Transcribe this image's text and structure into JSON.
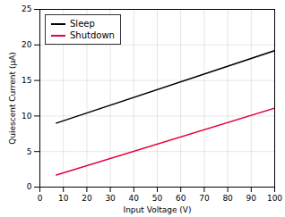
{
  "chart_data": {
    "type": "line",
    "xlabel": "Input Voltage (V)",
    "ylabel": "Quiescent Current (μA)",
    "x": [
      7,
      100
    ],
    "series": [
      {
        "name": "Sleep",
        "color": "#000000",
        "values": [
          9.0,
          19.2
        ]
      },
      {
        "name": "Shutdown",
        "color": "#e8003d",
        "values": [
          1.7,
          11.1
        ]
      }
    ],
    "xlim": [
      0,
      100
    ],
    "ylim": [
      0,
      25
    ],
    "xticks": [
      0,
      10,
      20,
      30,
      40,
      50,
      60,
      70,
      80,
      90,
      100
    ],
    "yticks": [
      0,
      5,
      10,
      15,
      20,
      25
    ],
    "grid": true,
    "legend": "upper left"
  }
}
